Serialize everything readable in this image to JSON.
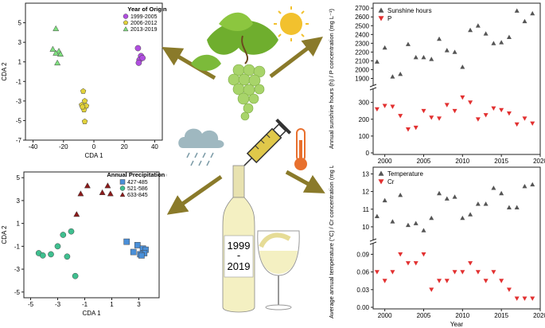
{
  "chart_data": [
    {
      "type": "scatter",
      "title": "Year of Origin",
      "xlabel": "CDA 1",
      "ylabel": "CDA 2",
      "xlim": [
        -45,
        45
      ],
      "ylim": [
        -7,
        7
      ],
      "xticks": [
        "-40",
        "-20",
        "0",
        "20",
        "40"
      ],
      "yticks": [
        "-7",
        "-5",
        "-3",
        "-1",
        "1",
        "3",
        "5"
      ],
      "series": [
        {
          "name": "1999-2005",
          "marker": "circle",
          "color": "#b04ee0",
          "x": [
            29,
            31,
            30,
            32,
            29.5
          ],
          "y": [
            2.4,
            1.6,
            1.2,
            1.4,
            0.9
          ]
        },
        {
          "name": "2006-2012",
          "marker": "pentagon",
          "color": "#e2d23a",
          "x": [
            -7,
            -6,
            -8,
            -5,
            -6.5,
            -7.5,
            -6
          ],
          "y": [
            -2.0,
            -3.0,
            -3.4,
            -3.5,
            -3.9,
            -3.6,
            -5.1
          ]
        },
        {
          "name": "2013-2019",
          "marker": "triangle",
          "color": "#7ee07e",
          "x": [
            -25,
            -27,
            -23,
            -25,
            -22,
            -24
          ],
          "y": [
            4.4,
            2.3,
            2.1,
            1.9,
            1.8,
            0.9
          ]
        }
      ]
    },
    {
      "type": "scatter",
      "title": "Annual Precipitation (mm)",
      "xlabel": "CDA 1",
      "ylabel": "CDA 2",
      "xlim": [
        -5.5,
        4.5
      ],
      "ylim": [
        -5.5,
        5.5
      ],
      "xticks": [
        "-5",
        "-3",
        "-1",
        "1",
        "3"
      ],
      "yticks": [
        "-5",
        "-3",
        "-1",
        "1",
        "3",
        "5"
      ],
      "series": [
        {
          "name": "427-485",
          "marker": "square",
          "color": "#4a8fd8",
          "x": [
            2.1,
            2.9,
            3.3,
            3.5,
            3.4,
            3.1,
            2.6,
            3.2
          ],
          "y": [
            -0.6,
            -0.9,
            -1.2,
            -1.3,
            -1.6,
            -1.7,
            -1.5,
            -1.8
          ]
        },
        {
          "name": "521-586",
          "marker": "circle",
          "color": "#3fbf8f",
          "x": [
            -4.4,
            -4.1,
            -3.0,
            -2.6,
            -2.3,
            -3.5,
            -2.0,
            -1.7
          ],
          "y": [
            -1.6,
            -1.8,
            -1.0,
            0.0,
            -1.9,
            -1.7,
            0.3,
            -3.6
          ]
        },
        {
          "name": "633-845",
          "marker": "triangle",
          "color": "#8b1a1a",
          "x": [
            -0.8,
            -1.3,
            0.3,
            0.7,
            0.9,
            -1.6
          ],
          "y": [
            4.3,
            3.6,
            3.7,
            4.3,
            3.6,
            1.8
          ]
        }
      ]
    },
    {
      "type": "scatter",
      "title": "",
      "xlabel": "Year",
      "ylabel": "Annual sunshine hours (h) / P concentration (mg L⁻¹)",
      "xlim": [
        1998.5,
        2020
      ],
      "xticks": [
        "2000",
        "2005",
        "2010",
        "2015",
        "2020"
      ],
      "y_upper_ticks": [
        "1900",
        "2000",
        "2100",
        "2200",
        "2300",
        "2400",
        "2500",
        "2600",
        "2700"
      ],
      "y_lower_ticks": [
        "0",
        "100",
        "200",
        "300"
      ],
      "series": [
        {
          "name": "Sunshine hours",
          "marker": "triangle-up",
          "color": "#555555",
          "x": [
            1999,
            2000,
            2001,
            2002,
            2003,
            2004,
            2005,
            2006,
            2007,
            2008,
            2009,
            2010,
            2011,
            2012,
            2013,
            2014,
            2015,
            2016,
            2017,
            2018,
            2019
          ],
          "y": [
            2090,
            2250,
            1920,
            1950,
            2290,
            2140,
            2140,
            2120,
            2350,
            2220,
            2200,
            2030,
            2450,
            2500,
            2410,
            2300,
            2310,
            2370,
            2670,
            2550,
            2640
          ]
        },
        {
          "name": "P",
          "marker": "triangle-down",
          "color": "#e23030",
          "x": [
            1999,
            2000,
            2001,
            2002,
            2003,
            2004,
            2005,
            2006,
            2007,
            2008,
            2009,
            2010,
            2011,
            2012,
            2013,
            2014,
            2015,
            2016,
            2017,
            2018,
            2019
          ],
          "y": [
            260,
            280,
            275,
            220,
            140,
            150,
            250,
            210,
            205,
            285,
            250,
            330,
            300,
            200,
            225,
            265,
            255,
            235,
            170,
            205,
            175
          ]
        }
      ]
    },
    {
      "type": "scatter",
      "title": "",
      "xlabel": "Year",
      "ylabel": "Average annual temperature (°C) / Cr concentration (mg L⁻¹)",
      "xlim": [
        1998.5,
        2020
      ],
      "xticks": [
        "2000",
        "2005",
        "2010",
        "2015",
        "2020"
      ],
      "y_upper_ticks": [
        "10",
        "11",
        "12",
        "13"
      ],
      "y_lower_ticks": [
        "0.00",
        "0.03",
        "0.06",
        "0.09"
      ],
      "series": [
        {
          "name": "Temperature",
          "marker": "triangle-up",
          "color": "#555555",
          "x": [
            1999,
            2000,
            2001,
            2002,
            2003,
            2004,
            2005,
            2006,
            2007,
            2008,
            2009,
            2010,
            2011,
            2012,
            2013,
            2014,
            2015,
            2016,
            2017,
            2018,
            2019
          ],
          "y": [
            10.6,
            11.5,
            10.3,
            11.8,
            10.1,
            10.2,
            9.8,
            10.5,
            11.9,
            11.6,
            11.7,
            10.5,
            10.7,
            11.3,
            11.3,
            12.2,
            11.9,
            11.1,
            11.1,
            12.3,
            12.4
          ]
        },
        {
          "name": "Cr",
          "marker": "triangle-down",
          "color": "#e23030",
          "x": [
            1999,
            2000,
            2001,
            2002,
            2003,
            2004,
            2005,
            2006,
            2007,
            2008,
            2009,
            2010,
            2011,
            2012,
            2013,
            2014,
            2015,
            2016,
            2017,
            2018,
            2019
          ],
          "y": [
            0.06,
            0.045,
            0.06,
            0.09,
            0.075,
            0.075,
            0.09,
            0.03,
            0.045,
            0.045,
            0.06,
            0.06,
            0.075,
            0.06,
            0.045,
            0.06,
            0.045,
            0.03,
            0.015,
            0.015,
            0.015
          ]
        }
      ]
    }
  ],
  "bottle_label": {
    "line1": "1999",
    "line2": "-",
    "line3": "2019"
  },
  "colors": {
    "arrow": "#8a7a2a",
    "grape": "#a8d46a",
    "leaf": "#6fae2e",
    "sun": "#f2c12e",
    "cloud": "#9fb8c0",
    "bottle": "#f4f0c2",
    "syringe": "#e0c84a",
    "thermometer": "#e8702e"
  },
  "icons": [
    "grape-vine-icon",
    "sun-icon",
    "rain-cloud-icon",
    "syringe-icon",
    "thermometer-icon",
    "wine-bottle-icon",
    "wine-glass-icon"
  ]
}
